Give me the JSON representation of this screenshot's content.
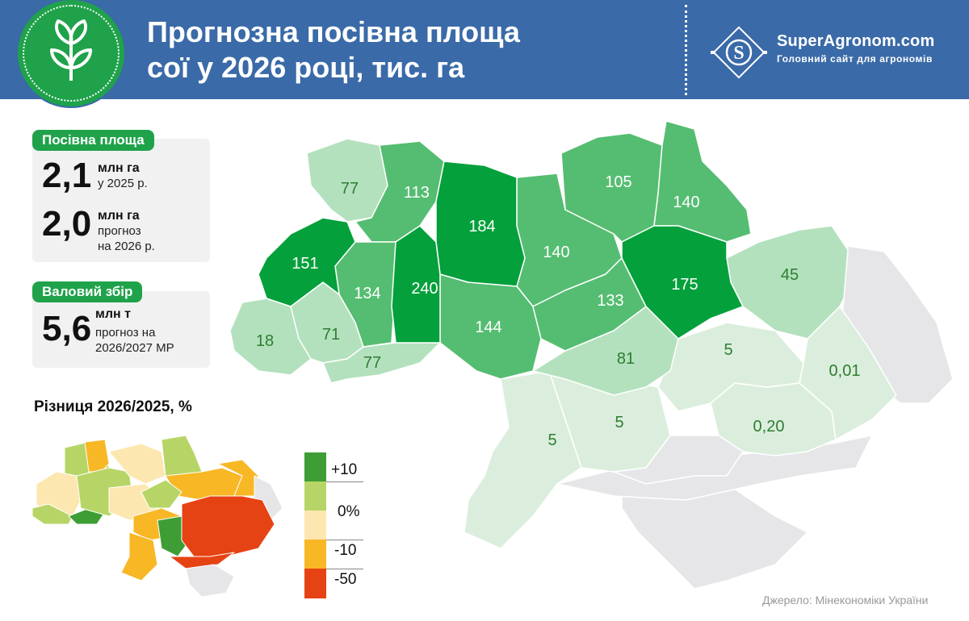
{
  "header": {
    "title_line1": "Прогнозна посівна площа",
    "title_line2": "сої у 2026 році, тис. га",
    "brand_name": "SuperAgronom.com",
    "brand_tagline": "Головний сайт для агрономів"
  },
  "area_card": {
    "label": "Посівна площа",
    "value_2025": "2,1",
    "unit_2025": "млн га",
    "note_2025": "у 2025 р.",
    "value_2026": "2,0",
    "unit_2026": "млн га",
    "note_2026_line1": "прогноз",
    "note_2026_line2": "на 2026 р."
  },
  "harvest_card": {
    "label": "Валовий збір",
    "value": "5,6",
    "unit": "млн т",
    "note_line1": "прогноз на",
    "note_line2": "2026/2027 МР"
  },
  "regions": [
    {
      "id": "volyn",
      "value": "77"
    },
    {
      "id": "rivne",
      "value": "113"
    },
    {
      "id": "zhytomyr",
      "value": "184"
    },
    {
      "id": "kyiv",
      "value": "140"
    },
    {
      "id": "chernihiv",
      "value": "105"
    },
    {
      "id": "sumy",
      "value": "140"
    },
    {
      "id": "lviv",
      "value": "151"
    },
    {
      "id": "ternopil",
      "value": "134"
    },
    {
      "id": "khmelnytskyi",
      "value": "240"
    },
    {
      "id": "vinnytsia",
      "value": "144"
    },
    {
      "id": "cherkasy",
      "value": "133"
    },
    {
      "id": "poltava",
      "value": "175"
    },
    {
      "id": "kharkiv",
      "value": "45"
    },
    {
      "id": "zakarpattia",
      "value": "18"
    },
    {
      "id": "ivano-frankivsk",
      "value": "71"
    },
    {
      "id": "chernivtsi",
      "value": "77"
    },
    {
      "id": "kirovohrad",
      "value": "81"
    },
    {
      "id": "dnipropetrovsk",
      "value": "5"
    },
    {
      "id": "donetsk",
      "value": "0,01"
    },
    {
      "id": "zaporizhzhia",
      "value": "0,20"
    },
    {
      "id": "mykolaiv",
      "value": "5"
    },
    {
      "id": "odesa",
      "value": "5"
    }
  ],
  "colors": {
    "header_bg": "#3a6aa8",
    "accent_green": "#1fa24a",
    "dark": "#04a03b",
    "strong": "#55bd71",
    "medium": "#8ed19d",
    "light": "#b3e1bd",
    "pale": "#dbeedd",
    "none": "#e6e6e8"
  },
  "diff_title": "Різниця 2026/2025, %",
  "legend": [
    {
      "label": "+10",
      "color": "#3e9e35"
    },
    {
      "label": "0%",
      "color": "#b7d566"
    },
    {
      "label": "-10",
      "color": "#f8b725"
    },
    {
      "label": "-50",
      "color": "#e64314"
    }
  ],
  "source": "Джерело: Мінекономіки України"
}
